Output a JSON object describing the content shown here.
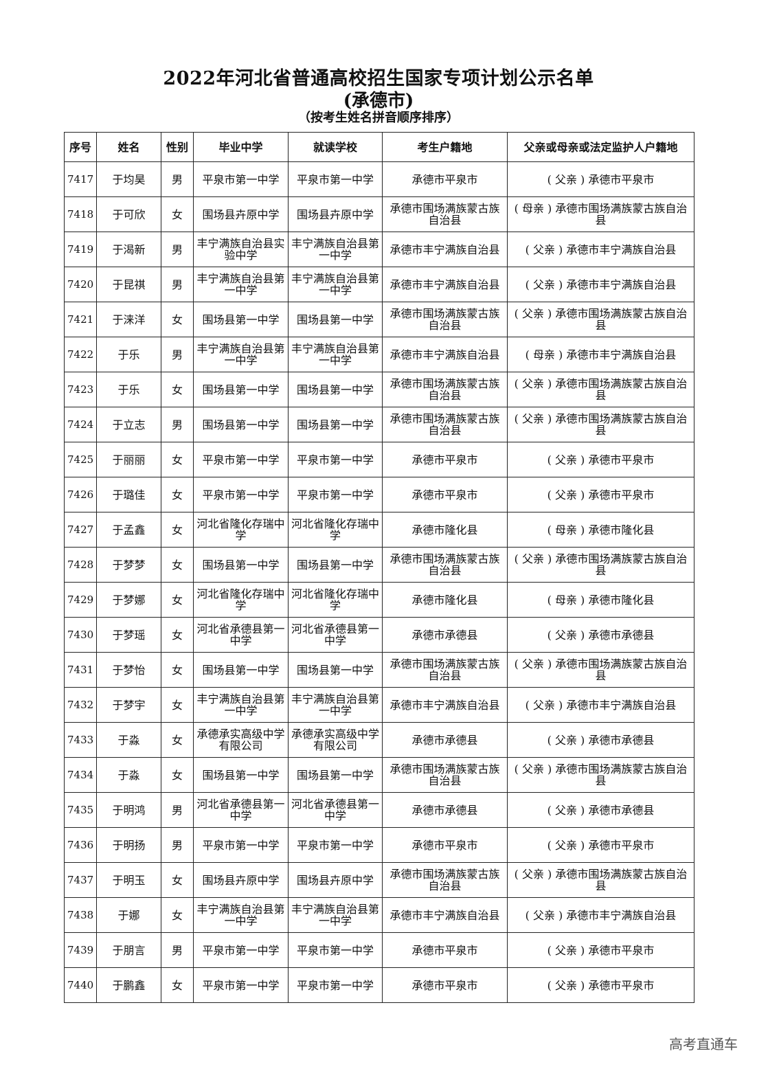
{
  "title": "2022年河北省普通高校招生国家专项计划公示名单",
  "subtitle": "(承德市)",
  "note": "（按考生姓名拼音顺序排序）",
  "columns": [
    "序号",
    "姓名",
    "性别",
    "毕业中学",
    "就读学校",
    "考生户籍地",
    "父亲或母亲或法定监护人户籍地"
  ],
  "rows": [
    [
      "7417",
      "于均昊",
      "男",
      "平泉市第一中学",
      "平泉市第一中学",
      "承德市平泉市",
      "( 父亲 ) 承德市平泉市"
    ],
    [
      "7418",
      "于可欣",
      "女",
      "围场县卉原中学",
      "围场县卉原中学",
      "承德市围场满族蒙古族自治县",
      "( 母亲 ) 承德市围场满族蒙古族自治县"
    ],
    [
      "7419",
      "于渴新",
      "男",
      "丰宁满族自治县实验中学",
      "丰宁满族自治县第一中学",
      "承德市丰宁满族自治县",
      "( 父亲 ) 承德市丰宁满族自治县"
    ],
    [
      "7420",
      "于昆祺",
      "男",
      "丰宁满族自治县第一中学",
      "丰宁满族自治县第一中学",
      "承德市丰宁满族自治县",
      "( 父亲 ) 承德市丰宁满族自治县"
    ],
    [
      "7421",
      "于涞洋",
      "女",
      "围场县第一中学",
      "围场县第一中学",
      "承德市围场满族蒙古族自治县",
      "( 父亲 ) 承德市围场满族蒙古族自治县"
    ],
    [
      "7422",
      "于乐",
      "男",
      "丰宁满族自治县第一中学",
      "丰宁满族自治县第一中学",
      "承德市丰宁满族自治县",
      "( 母亲 ) 承德市丰宁满族自治县"
    ],
    [
      "7423",
      "于乐",
      "女",
      "围场县第一中学",
      "围场县第一中学",
      "承德市围场满族蒙古族自治县",
      "( 父亲 ) 承德市围场满族蒙古族自治县"
    ],
    [
      "7424",
      "于立志",
      "男",
      "围场县第一中学",
      "围场县第一中学",
      "承德市围场满族蒙古族自治县",
      "( 父亲 ) 承德市围场满族蒙古族自治县"
    ],
    [
      "7425",
      "于丽丽",
      "女",
      "平泉市第一中学",
      "平泉市第一中学",
      "承德市平泉市",
      "( 父亲 ) 承德市平泉市"
    ],
    [
      "7426",
      "于璐佳",
      "女",
      "平泉市第一中学",
      "平泉市第一中学",
      "承德市平泉市",
      "( 父亲 ) 承德市平泉市"
    ],
    [
      "7427",
      "于孟鑫",
      "女",
      "河北省隆化存瑞中学",
      "河北省隆化存瑞中学",
      "承德市隆化县",
      "( 母亲 ) 承德市隆化县"
    ],
    [
      "7428",
      "于梦梦",
      "女",
      "围场县第一中学",
      "围场县第一中学",
      "承德市围场满族蒙古族自治县",
      "( 父亲 ) 承德市围场满族蒙古族自治县"
    ],
    [
      "7429",
      "于梦娜",
      "女",
      "河北省隆化存瑞中学",
      "河北省隆化存瑞中学",
      "承德市隆化县",
      "( 母亲 ) 承德市隆化县"
    ],
    [
      "7430",
      "于梦瑶",
      "女",
      "河北省承德县第一中学",
      "河北省承德县第一中学",
      "承德市承德县",
      "( 父亲 ) 承德市承德县"
    ],
    [
      "7431",
      "于梦怡",
      "女",
      "围场县第一中学",
      "围场县第一中学",
      "承德市围场满族蒙古族自治县",
      "( 父亲 ) 承德市围场满族蒙古族自治县"
    ],
    [
      "7432",
      "于梦宇",
      "女",
      "丰宁满族自治县第一中学",
      "丰宁满族自治县第一中学",
      "承德市丰宁满族自治县",
      "( 父亲 ) 承德市丰宁满族自治县"
    ],
    [
      "7433",
      "于淼",
      "女",
      "承德承实高级中学有限公司",
      "承德承实高级中学有限公司",
      "承德市承德县",
      "( 父亲 ) 承德市承德县"
    ],
    [
      "7434",
      "于淼",
      "女",
      "围场县第一中学",
      "围场县第一中学",
      "承德市围场满族蒙古族自治县",
      "( 父亲 ) 承德市围场满族蒙古族自治县"
    ],
    [
      "7435",
      "于明鸿",
      "男",
      "河北省承德县第一中学",
      "河北省承德县第一中学",
      "承德市承德县",
      "( 父亲 ) 承德市承德县"
    ],
    [
      "7436",
      "于明扬",
      "男",
      "平泉市第一中学",
      "平泉市第一中学",
      "承德市平泉市",
      "( 父亲 ) 承德市平泉市"
    ],
    [
      "7437",
      "于明玉",
      "女",
      "围场县卉原中学",
      "围场县卉原中学",
      "承德市围场满族蒙古族自治县",
      "( 父亲 ) 承德市围场满族蒙古族自治县"
    ],
    [
      "7438",
      "于娜",
      "女",
      "丰宁满族自治县第一中学",
      "丰宁满族自治县第一中学",
      "承德市丰宁满族自治县",
      "( 父亲 ) 承德市丰宁满族自治县"
    ],
    [
      "7439",
      "于朋言",
      "男",
      "平泉市第一中学",
      "平泉市第一中学",
      "承德市平泉市",
      "( 父亲 ) 承德市平泉市"
    ],
    [
      "7440",
      "于鹏鑫",
      "女",
      "平泉市第一中学",
      "平泉市第一中学",
      "承德市平泉市",
      "( 父亲 ) 承德市平泉市"
    ]
  ],
  "watermark": "高考直通车"
}
